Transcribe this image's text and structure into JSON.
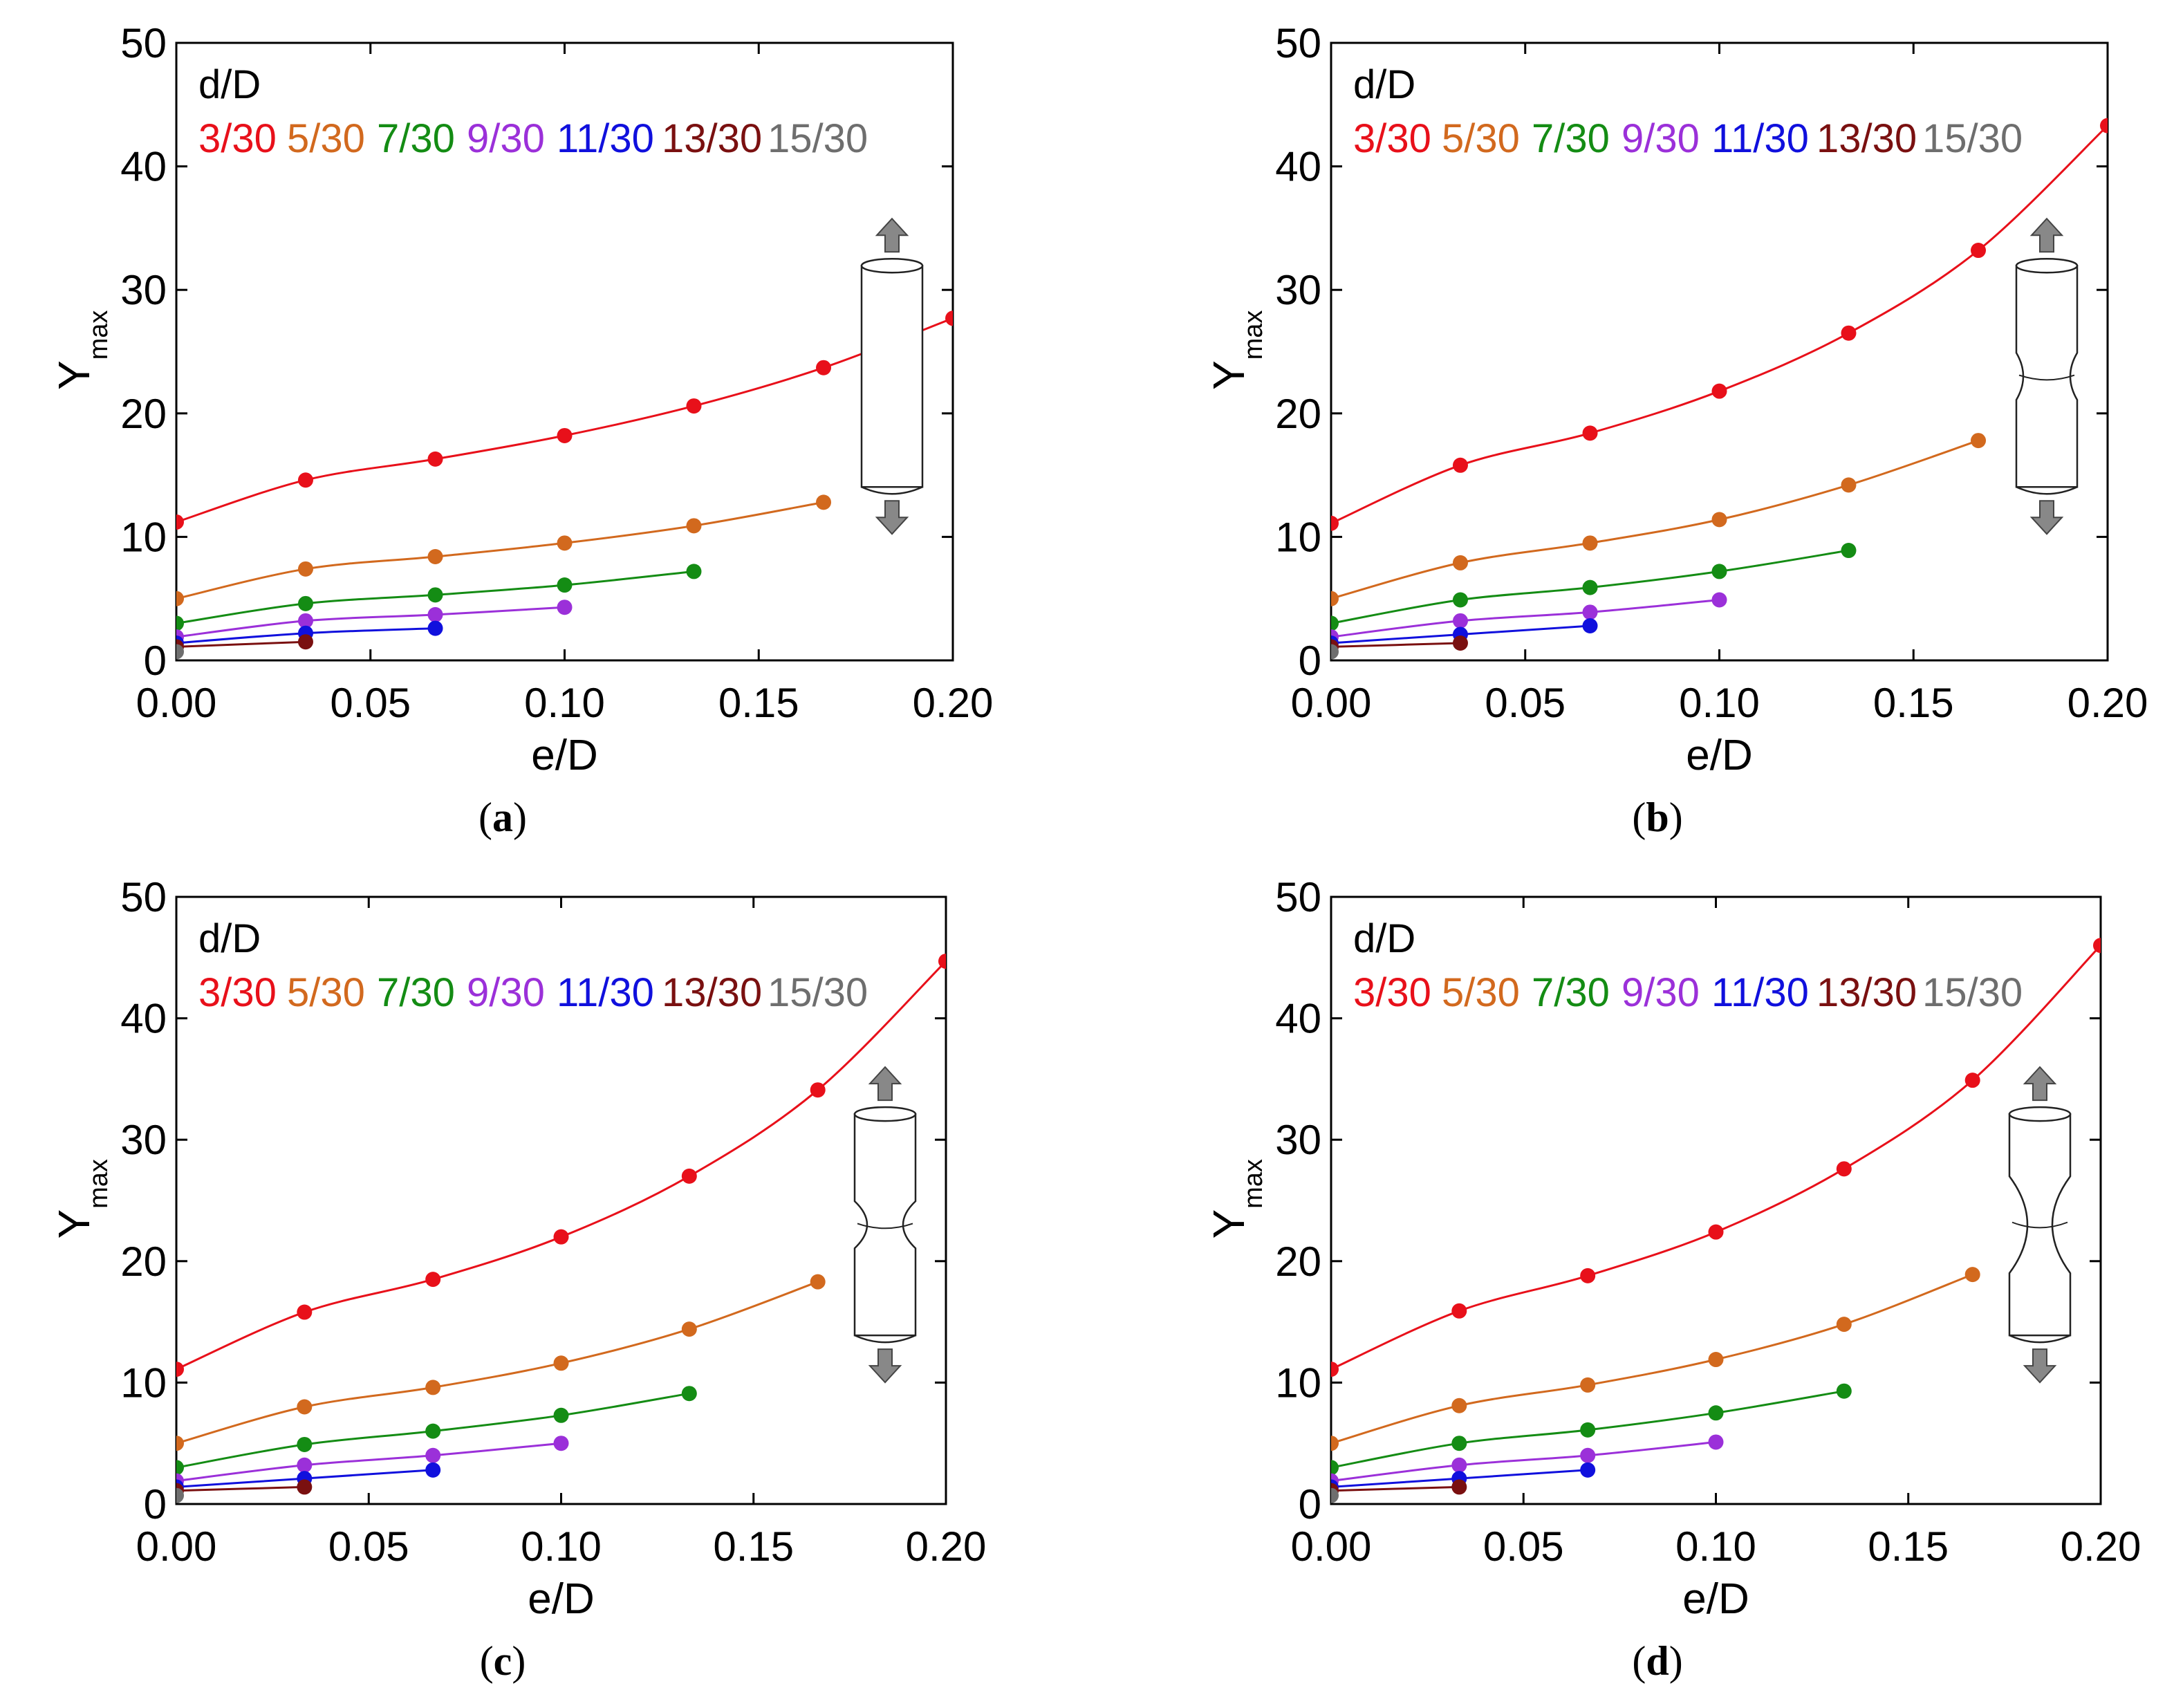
{
  "chart_data": [
    {
      "type": "line",
      "panel_label": "a",
      "legend_title": "d/D",
      "xlabel": "e/D",
      "ylabel": "Y",
      "ylabel_sub": "max",
      "xlim": [
        0,
        0.2
      ],
      "ylim": [
        0,
        50
      ],
      "x_ticks": [
        "0.00",
        "0.05",
        "0.10",
        "0.15",
        "0.20"
      ],
      "y_ticks": [
        "0",
        "10",
        "20",
        "30",
        "40",
        "50"
      ],
      "specimen": "smooth",
      "series": [
        {
          "name": "3/30",
          "color": "#e8101a",
          "x": [
            0,
            0.0333,
            0.0667,
            0.1,
            0.1333,
            0.1667,
            0.2
          ],
          "values": [
            11.2,
            14.6,
            16.3,
            18.2,
            20.6,
            23.7,
            27.7
          ]
        },
        {
          "name": "5/30",
          "color": "#d2691e",
          "x": [
            0,
            0.0333,
            0.0667,
            0.1,
            0.1333,
            0.1667
          ],
          "values": [
            5.0,
            7.4,
            8.4,
            9.5,
            10.9,
            12.8
          ]
        },
        {
          "name": "7/30",
          "color": "#148c14",
          "x": [
            0,
            0.0333,
            0.0667,
            0.1,
            0.1333
          ],
          "values": [
            3.0,
            4.6,
            5.3,
            6.1,
            7.2
          ]
        },
        {
          "name": "9/30",
          "color": "#9b30d9",
          "x": [
            0,
            0.0333,
            0.0667,
            0.1
          ],
          "values": [
            1.9,
            3.2,
            3.7,
            4.3
          ]
        },
        {
          "name": "11/30",
          "color": "#1010dd",
          "x": [
            0,
            0.0333,
            0.0667
          ],
          "values": [
            1.4,
            2.2,
            2.6
          ]
        },
        {
          "name": "13/30",
          "color": "#7a1010",
          "x": [
            0,
            0.0333
          ],
          "values": [
            1.1,
            1.5
          ]
        },
        {
          "name": "15/30",
          "color": "#6e6e6e",
          "x": [
            0
          ],
          "values": [
            0.7
          ]
        }
      ]
    },
    {
      "type": "line",
      "panel_label": "b",
      "legend_title": "d/D",
      "xlabel": "e/D",
      "ylabel": "Y",
      "ylabel_sub": "max",
      "xlim": [
        0,
        0.2
      ],
      "ylim": [
        0,
        50
      ],
      "x_ticks": [
        "0.00",
        "0.05",
        "0.10",
        "0.15",
        "0.20"
      ],
      "y_ticks": [
        "0",
        "10",
        "20",
        "30",
        "40",
        "50"
      ],
      "specimen": "notched-shallow",
      "series": [
        {
          "name": "3/30",
          "color": "#e8101a",
          "x": [
            0,
            0.0333,
            0.0667,
            0.1,
            0.1333,
            0.1667,
            0.2
          ],
          "values": [
            11.1,
            15.8,
            18.4,
            21.8,
            26.5,
            33.2,
            43.3
          ]
        },
        {
          "name": "5/30",
          "color": "#d2691e",
          "x": [
            0,
            0.0333,
            0.0667,
            0.1,
            0.1333,
            0.1667
          ],
          "values": [
            5.0,
            7.9,
            9.5,
            11.4,
            14.2,
            17.8
          ]
        },
        {
          "name": "7/30",
          "color": "#148c14",
          "x": [
            0,
            0.0333,
            0.0667,
            0.1,
            0.1333
          ],
          "values": [
            3.0,
            4.9,
            5.9,
            7.2,
            8.9
          ]
        },
        {
          "name": "9/30",
          "color": "#9b30d9",
          "x": [
            0,
            0.0333,
            0.0667,
            0.1
          ],
          "values": [
            1.9,
            3.2,
            3.9,
            4.9
          ]
        },
        {
          "name": "11/30",
          "color": "#1010dd",
          "x": [
            0,
            0.0333,
            0.0667
          ],
          "values": [
            1.4,
            2.1,
            2.8
          ]
        },
        {
          "name": "13/30",
          "color": "#7a1010",
          "x": [
            0,
            0.0333
          ],
          "values": [
            1.1,
            1.4
          ]
        },
        {
          "name": "15/30",
          "color": "#6e6e6e",
          "x": [
            0
          ],
          "values": [
            0.7
          ]
        }
      ]
    },
    {
      "type": "line",
      "panel_label": "c",
      "legend_title": "d/D",
      "xlabel": "e/D",
      "ylabel": "Y",
      "ylabel_sub": "max",
      "xlim": [
        0,
        0.2
      ],
      "ylim": [
        0,
        50
      ],
      "x_ticks": [
        "0.00",
        "0.05",
        "0.10",
        "0.15",
        "0.20"
      ],
      "y_ticks": [
        "0",
        "10",
        "20",
        "30",
        "40",
        "50"
      ],
      "specimen": "notched-medium",
      "series": [
        {
          "name": "3/30",
          "color": "#e8101a",
          "x": [
            0,
            0.0333,
            0.0667,
            0.1,
            0.1333,
            0.1667,
            0.2
          ],
          "values": [
            11.1,
            15.8,
            18.5,
            22.0,
            27.0,
            34.1,
            44.7
          ]
        },
        {
          "name": "5/30",
          "color": "#d2691e",
          "x": [
            0,
            0.0333,
            0.0667,
            0.1,
            0.1333,
            0.1667
          ],
          "values": [
            5.0,
            8.0,
            9.6,
            11.6,
            14.4,
            18.3
          ]
        },
        {
          "name": "7/30",
          "color": "#148c14",
          "x": [
            0,
            0.0333,
            0.0667,
            0.1,
            0.1333
          ],
          "values": [
            3.0,
            4.9,
            6.0,
            7.3,
            9.1
          ]
        },
        {
          "name": "9/30",
          "color": "#9b30d9",
          "x": [
            0,
            0.0333,
            0.0667,
            0.1
          ],
          "values": [
            1.9,
            3.2,
            4.0,
            5.0
          ]
        },
        {
          "name": "11/30",
          "color": "#1010dd",
          "x": [
            0,
            0.0333,
            0.0667
          ],
          "values": [
            1.4,
            2.1,
            2.8
          ]
        },
        {
          "name": "13/30",
          "color": "#7a1010",
          "x": [
            0,
            0.0333
          ],
          "values": [
            1.1,
            1.4
          ]
        },
        {
          "name": "15/30",
          "color": "#6e6e6e",
          "x": [
            0
          ],
          "values": [
            0.7
          ]
        }
      ]
    },
    {
      "type": "line",
      "panel_label": "d",
      "legend_title": "d/D",
      "xlabel": "e/D",
      "ylabel": "Y",
      "ylabel_sub": "max",
      "xlim": [
        0,
        0.2
      ],
      "ylim": [
        0,
        50
      ],
      "x_ticks": [
        "0.00",
        "0.05",
        "0.10",
        "0.15",
        "0.20"
      ],
      "y_ticks": [
        "0",
        "10",
        "20",
        "30",
        "40",
        "50"
      ],
      "specimen": "notched-deep",
      "series": [
        {
          "name": "3/30",
          "color": "#e8101a",
          "x": [
            0,
            0.0333,
            0.0667,
            0.1,
            0.1333,
            0.1667,
            0.2
          ],
          "values": [
            11.1,
            15.9,
            18.8,
            22.4,
            27.6,
            34.9,
            46.0
          ]
        },
        {
          "name": "5/30",
          "color": "#d2691e",
          "x": [
            0,
            0.0333,
            0.0667,
            0.1,
            0.1333,
            0.1667
          ],
          "values": [
            5.0,
            8.1,
            9.8,
            11.9,
            14.8,
            18.9
          ]
        },
        {
          "name": "7/30",
          "color": "#148c14",
          "x": [
            0,
            0.0333,
            0.0667,
            0.1,
            0.1333
          ],
          "values": [
            3.0,
            5.0,
            6.1,
            7.5,
            9.3
          ]
        },
        {
          "name": "9/30",
          "color": "#9b30d9",
          "x": [
            0,
            0.0333,
            0.0667,
            0.1
          ],
          "values": [
            1.9,
            3.2,
            4.0,
            5.1
          ]
        },
        {
          "name": "11/30",
          "color": "#1010dd",
          "x": [
            0,
            0.0333,
            0.0667
          ],
          "values": [
            1.4,
            2.1,
            2.8
          ]
        },
        {
          "name": "13/30",
          "color": "#7a1010",
          "x": [
            0,
            0.0333
          ],
          "values": [
            1.1,
            1.4
          ]
        },
        {
          "name": "15/30",
          "color": "#6e6e6e",
          "x": [
            0
          ],
          "values": [
            0.7
          ]
        }
      ]
    }
  ]
}
